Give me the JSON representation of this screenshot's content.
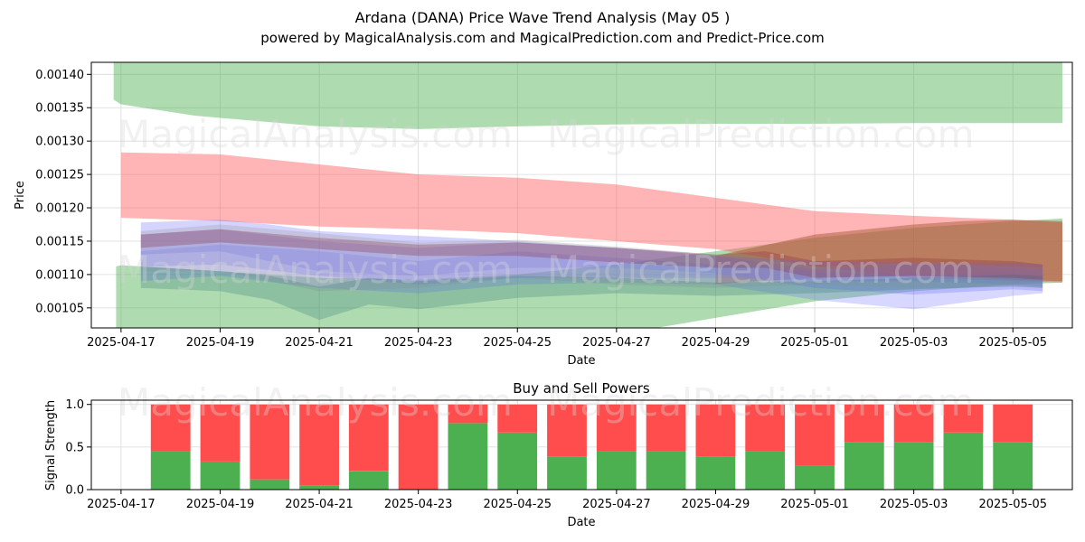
{
  "header": {
    "title": "Ardana (DANA) Price Wave Trend Analysis (May 05 )",
    "subtitle": "powered by MagicalAnalysis.com and MagicalPrediction.com and Predict-Price.com"
  },
  "watermarks": {
    "top_left": "MagicalAnalysis.com",
    "top_right": "MagicalPrediction.com",
    "mid_left": "MagicalAnalysis.com",
    "mid_right": "MagicalPrediction.com",
    "bottom_left": "MagicalAnalysis.com",
    "bottom_right": "MagicalPrediction.com"
  },
  "colors": {
    "green_band": "#4caf50",
    "red_band": "#ff5a5a",
    "blue_band": "#6f6fff",
    "brown_band": "#a0522d",
    "buy": "#4caf50",
    "sell": "#ff4c4c",
    "grid": "#d9d9d9"
  },
  "chart_data": [
    {
      "type": "area",
      "title": "",
      "xlabel": "Date",
      "ylabel": "Price",
      "ylim": [
        0.00102,
        0.001418
      ],
      "xlim": [
        -0.6,
        19.2
      ],
      "x_origin_date": "2025-04-17",
      "x_ticks": [
        {
          "x": 0,
          "label": "2025-04-17"
        },
        {
          "x": 2,
          "label": "2025-04-19"
        },
        {
          "x": 4,
          "label": "2025-04-21"
        },
        {
          "x": 6,
          "label": "2025-04-23"
        },
        {
          "x": 8,
          "label": "2025-04-25"
        },
        {
          "x": 10,
          "label": "2025-04-27"
        },
        {
          "x": 12,
          "label": "2025-04-29"
        },
        {
          "x": 14,
          "label": "2025-05-01"
        },
        {
          "x": 16,
          "label": "2025-05-03"
        },
        {
          "x": 18,
          "label": "2025-05-05"
        }
      ],
      "y_ticks": [
        {
          "value": 0.00105,
          "label": "0.00105"
        },
        {
          "value": 0.0011,
          "label": "0.00110"
        },
        {
          "value": 0.00115,
          "label": "0.00115"
        },
        {
          "value": 0.0012,
          "label": "0.00120"
        },
        {
          "value": 0.00125,
          "label": "0.00125"
        },
        {
          "value": 0.0013,
          "label": "0.00130"
        },
        {
          "value": 0.00135,
          "label": "0.00135"
        },
        {
          "value": 0.0014,
          "label": "0.00140"
        }
      ],
      "grid": true,
      "bands": [
        {
          "name": "upper-green-band",
          "color": "green",
          "opacity": 0.45,
          "x": [
            -0.15,
            0.0,
            1.5,
            4,
            6,
            8,
            10,
            12,
            14,
            16,
            18,
            19.0
          ],
          "upper": [
            0.001425,
            0.001425,
            0.001425,
            0.001425,
            0.001418,
            0.001425,
            0.001425,
            0.001425,
            0.001425,
            0.001425,
            0.001425,
            0.001422
          ],
          "lower": [
            0.001362,
            0.001355,
            0.001338,
            0.001322,
            0.001318,
            0.001322,
            0.001325,
            0.001326,
            0.001326,
            0.001327,
            0.001327,
            0.001327
          ]
        },
        {
          "name": "lower-green-band",
          "color": "green",
          "opacity": 0.45,
          "x": [
            -0.1,
            0.0,
            2,
            4,
            6,
            8,
            10,
            12,
            14,
            16,
            18,
            19.0
          ],
          "upper": [
            0.001112,
            0.001114,
            0.001105,
            0.001095,
            0.001092,
            0.0011,
            0.001115,
            0.001135,
            0.001155,
            0.00117,
            0.00118,
            0.001184
          ],
          "lower": [
            0.001016,
            0.001018,
            0.001008,
            0.000998,
            0.000994,
            0.000996,
            0.00101,
            0.001035,
            0.00106,
            0.001075,
            0.001085,
            0.001088
          ]
        },
        {
          "name": "red-band",
          "color": "red",
          "opacity": 0.45,
          "x": [
            0.0,
            2,
            4,
            6,
            8,
            10,
            12,
            14,
            16,
            18,
            19.0
          ],
          "upper": [
            0.001283,
            0.00128,
            0.001265,
            0.00125,
            0.001245,
            0.001235,
            0.001215,
            0.001195,
            0.001188,
            0.001182,
            0.001178
          ],
          "lower": [
            0.001185,
            0.00118,
            0.001172,
            0.001168,
            0.001162,
            0.00115,
            0.001138,
            0.001112,
            0.001095,
            0.00109,
            0.001088
          ]
        },
        {
          "name": "brown-band",
          "color": "brown",
          "opacity": 0.45,
          "x": [
            12,
            14,
            16,
            17,
            18,
            19.0
          ],
          "upper": [
            0.001128,
            0.00116,
            0.001175,
            0.00118,
            0.001182,
            0.00118
          ],
          "lower": [
            0.001086,
            0.001095,
            0.001098,
            0.001096,
            0.001092,
            0.00109
          ]
        },
        {
          "name": "blue-band-1",
          "color": "blue",
          "opacity": 0.3,
          "x": [
            0.4,
            2,
            4,
            6,
            8,
            10,
            12,
            14,
            16,
            18,
            18.6
          ],
          "upper": [
            0.00116,
            0.001168,
            0.00115,
            0.00114,
            0.001148,
            0.00114,
            0.001128,
            0.00112,
            0.001118,
            0.00111,
            0.001108
          ],
          "lower": [
            0.001112,
            0.001115,
            0.001098,
            0.001085,
            0.001095,
            0.001095,
            0.001095,
            0.00109,
            0.00109,
            0.001085,
            0.001082
          ]
        },
        {
          "name": "blue-band-2",
          "color": "blue",
          "opacity": 0.3,
          "x": [
            0.4,
            2,
            3,
            4,
            6,
            8,
            10,
            12,
            14,
            16,
            18,
            18.6
          ],
          "upper": [
            0.001178,
            0.001182,
            0.001175,
            0.001165,
            0.001158,
            0.00115,
            0.00114,
            0.001128,
            0.001108,
            0.001115,
            0.001118,
            0.001115
          ],
          "lower": [
            0.00113,
            0.001135,
            0.00112,
            0.001105,
            0.001098,
            0.00111,
            0.00111,
            0.001102,
            0.00108,
            0.00107,
            0.001078,
            0.001075
          ]
        },
        {
          "name": "blue-band-3",
          "color": "blue",
          "opacity": 0.28,
          "x": [
            0.4,
            2,
            4,
            6,
            8,
            10,
            12,
            14,
            16,
            18,
            18.6
          ],
          "upper": [
            0.001135,
            0.001145,
            0.001135,
            0.00112,
            0.001135,
            0.001125,
            0.001115,
            0.001105,
            0.0011,
            0.0011,
            0.001095
          ],
          "lower": [
            0.00109,
            0.001098,
            0.00108,
            0.001072,
            0.001085,
            0.001088,
            0.001085,
            0.001062,
            0.001048,
            0.001068,
            0.001072
          ]
        },
        {
          "name": "grey-band",
          "color": "grey",
          "opacity": 0.3,
          "x": [
            0.4,
            2,
            4,
            6,
            8,
            10,
            12,
            14,
            16,
            18,
            18.6
          ],
          "upper": [
            0.001165,
            0.001175,
            0.001162,
            0.001148,
            0.001152,
            0.001142,
            0.00113,
            0.001112,
            0.001118,
            0.001112,
            0.00111
          ],
          "lower": [
            0.001105,
            0.001105,
            0.001075,
            0.00108,
            0.001095,
            0.001085,
            0.00108,
            0.001085,
            0.00108,
            0.001082,
            0.00108
          ]
        },
        {
          "name": "teal-band",
          "color": "teal",
          "opacity": 0.28,
          "x": [
            0.4,
            2,
            3,
            4,
            5,
            6,
            8,
            10,
            12,
            14,
            16,
            18,
            18.6
          ],
          "upper": [
            0.001112,
            0.001105,
            0.001098,
            0.001082,
            0.001095,
            0.00109,
            0.001098,
            0.001095,
            0.001088,
            0.00109,
            0.001095,
            0.0011,
            0.001098
          ],
          "lower": [
            0.00108,
            0.001075,
            0.001062,
            0.001032,
            0.001055,
            0.001048,
            0.001065,
            0.001072,
            0.001068,
            0.001072,
            0.001078,
            0.001082,
            0.00108
          ]
        },
        {
          "name": "dark-red-band",
          "color": "darkred",
          "opacity": 0.3,
          "x": [
            0.4,
            2,
            4,
            6,
            8,
            10,
            12,
            13,
            14,
            16,
            18,
            18.6
          ],
          "upper": [
            0.00116,
            0.001168,
            0.001155,
            0.001145,
            0.001148,
            0.00114,
            0.00113,
            0.001135,
            0.00112,
            0.001125,
            0.00112,
            0.001115
          ],
          "lower": [
            0.00114,
            0.001148,
            0.001138,
            0.001128,
            0.001128,
            0.001118,
            0.00111,
            0.00111,
            0.001095,
            0.001098,
            0.001095,
            0.001092
          ]
        }
      ]
    },
    {
      "type": "bar",
      "title": "Buy and Sell Powers",
      "xlabel": "Date",
      "ylabel": "Signal Strength",
      "ylim": [
        0,
        1.05
      ],
      "xlim": [
        -0.6,
        19.2
      ],
      "x_origin_date": "2025-04-17",
      "x_ticks": [
        {
          "x": 0,
          "label": "2025-04-17"
        },
        {
          "x": 2,
          "label": "2025-04-19"
        },
        {
          "x": 4,
          "label": "2025-04-21"
        },
        {
          "x": 6,
          "label": "2025-04-23"
        },
        {
          "x": 8,
          "label": "2025-04-25"
        },
        {
          "x": 10,
          "label": "2025-04-27"
        },
        {
          "x": 12,
          "label": "2025-04-29"
        },
        {
          "x": 14,
          "label": "2025-05-01"
        },
        {
          "x": 16,
          "label": "2025-05-03"
        },
        {
          "x": 18,
          "label": "2025-05-05"
        }
      ],
      "y_ticks": [
        {
          "value": 0.0,
          "label": "0.0"
        },
        {
          "value": 0.5,
          "label": "0.5"
        },
        {
          "value": 1.0,
          "label": "1.0"
        }
      ],
      "grid": true,
      "bar_width": 0.8,
      "categories": [
        "2025-04-18",
        "2025-04-19",
        "2025-04-20",
        "2025-04-21",
        "2025-04-22",
        "2025-04-23",
        "2025-04-24",
        "2025-04-25",
        "2025-04-26",
        "2025-04-27",
        "2025-04-28",
        "2025-04-29",
        "2025-04-30",
        "2025-05-01",
        "2025-05-02",
        "2025-05-03",
        "2025-05-04",
        "2025-05-05"
      ],
      "x": [
        1,
        2,
        3,
        4,
        5,
        6,
        7,
        8,
        9,
        10,
        11,
        12,
        13,
        14,
        15,
        16,
        17,
        18
      ],
      "series": [
        {
          "name": "Buy",
          "color": "buy",
          "values": [
            0.45,
            0.33,
            0.12,
            0.05,
            0.22,
            0.0,
            0.78,
            0.67,
            0.39,
            0.45,
            0.45,
            0.39,
            0.45,
            0.28,
            0.56,
            0.56,
            0.67,
            0.56
          ]
        },
        {
          "name": "Sell",
          "color": "sell",
          "values": [
            0.55,
            0.67,
            0.88,
            0.95,
            0.78,
            1.0,
            0.22,
            0.33,
            0.61,
            0.55,
            0.55,
            0.61,
            0.55,
            0.72,
            0.44,
            0.44,
            0.33,
            0.44
          ]
        }
      ]
    }
  ]
}
